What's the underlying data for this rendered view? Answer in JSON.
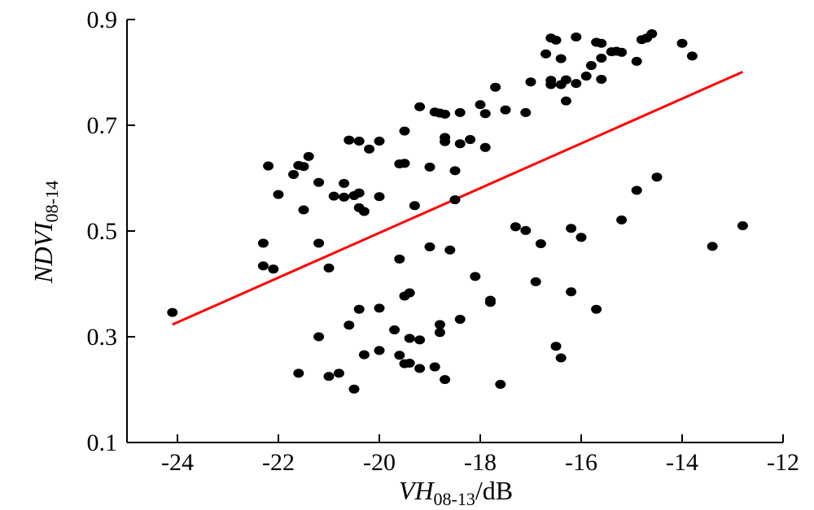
{
  "chart_data": {
    "type": "scatter",
    "title": "",
    "xlabel": {
      "main": "VH",
      "sub": "08-13",
      "suffix": "/dB"
    },
    "ylabel": {
      "main": "NDVI",
      "sub": "08-14"
    },
    "xlim": [
      -25,
      -12
    ],
    "ylim": [
      0.1,
      0.9
    ],
    "x_ticks": [
      "-24",
      "-22",
      "-20",
      "-18",
      "-16",
      "-14",
      "-12"
    ],
    "y_ticks": [
      "0.1",
      "0.3",
      "0.5",
      "0.7",
      "0.9"
    ],
    "grid": false,
    "series": [
      {
        "type": "scatter",
        "color": "#000000",
        "points": [
          [
            -24.1,
            0.346
          ],
          [
            -22.3,
            0.477
          ],
          [
            -22.3,
            0.434
          ],
          [
            -22.1,
            0.428
          ],
          [
            -22.2,
            0.623
          ],
          [
            -22.0,
            0.569
          ],
          [
            -21.7,
            0.607
          ],
          [
            -21.6,
            0.624
          ],
          [
            -21.5,
            0.622
          ],
          [
            -21.4,
            0.641
          ],
          [
            -21.5,
            0.54
          ],
          [
            -21.2,
            0.592
          ],
          [
            -21.2,
            0.477
          ],
          [
            -21.0,
            0.43
          ],
          [
            -20.9,
            0.566
          ],
          [
            -20.7,
            0.564
          ],
          [
            -20.7,
            0.59
          ],
          [
            -20.5,
            0.567
          ],
          [
            -20.6,
            0.672
          ],
          [
            -20.4,
            0.67
          ],
          [
            -20.4,
            0.572
          ],
          [
            -20.4,
            0.544
          ],
          [
            -20.3,
            0.537
          ],
          [
            -20.2,
            0.655
          ],
          [
            -20.0,
            0.67
          ],
          [
            -20.0,
            0.565
          ],
          [
            -19.6,
            0.627
          ],
          [
            -19.5,
            0.628
          ],
          [
            -19.5,
            0.689
          ],
          [
            -19.3,
            0.548
          ],
          [
            -19.2,
            0.735
          ],
          [
            -19.0,
            0.621
          ],
          [
            -18.9,
            0.725
          ],
          [
            -18.8,
            0.723
          ],
          [
            -18.7,
            0.721
          ],
          [
            -18.7,
            0.677
          ],
          [
            -18.7,
            0.669
          ],
          [
            -18.5,
            0.614
          ],
          [
            -18.5,
            0.559
          ],
          [
            -18.4,
            0.665
          ],
          [
            -18.4,
            0.724
          ],
          [
            -18.2,
            0.673
          ],
          [
            -18.0,
            0.739
          ],
          [
            -17.9,
            0.722
          ],
          [
            -17.9,
            0.658
          ],
          [
            -17.7,
            0.772
          ],
          [
            -17.5,
            0.729
          ],
          [
            -17.1,
            0.724
          ],
          [
            -17.0,
            0.782
          ],
          [
            -16.7,
            0.835
          ],
          [
            -16.6,
            0.865
          ],
          [
            -16.5,
            0.861
          ],
          [
            -16.6,
            0.785
          ],
          [
            -16.6,
            0.777
          ],
          [
            -16.4,
            0.826
          ],
          [
            -16.4,
            0.777
          ],
          [
            -16.3,
            0.786
          ],
          [
            -16.3,
            0.746
          ],
          [
            -16.1,
            0.867
          ],
          [
            -16.1,
            0.779
          ],
          [
            -15.9,
            0.793
          ],
          [
            -15.8,
            0.813
          ],
          [
            -15.7,
            0.857
          ],
          [
            -15.6,
            0.855
          ],
          [
            -15.6,
            0.827
          ],
          [
            -15.6,
            0.787
          ],
          [
            -15.4,
            0.839
          ],
          [
            -15.3,
            0.84
          ],
          [
            -15.2,
            0.838
          ],
          [
            -14.9,
            0.821
          ],
          [
            -14.8,
            0.862
          ],
          [
            -14.7,
            0.865
          ],
          [
            -14.6,
            0.873
          ],
          [
            -14.0,
            0.855
          ],
          [
            -13.8,
            0.831
          ],
          [
            -21.6,
            0.231
          ],
          [
            -21.2,
            0.3
          ],
          [
            -21.0,
            0.225
          ],
          [
            -20.8,
            0.231
          ],
          [
            -20.6,
            0.322
          ],
          [
            -20.5,
            0.201
          ],
          [
            -20.4,
            0.352
          ],
          [
            -20.3,
            0.266
          ],
          [
            -20.0,
            0.274
          ],
          [
            -20.0,
            0.354
          ],
          [
            -19.7,
            0.313
          ],
          [
            -19.6,
            0.265
          ],
          [
            -19.6,
            0.447
          ],
          [
            -19.5,
            0.377
          ],
          [
            -19.4,
            0.383
          ],
          [
            -19.5,
            0.249
          ],
          [
            -19.4,
            0.25
          ],
          [
            -19.4,
            0.297
          ],
          [
            -19.2,
            0.24
          ],
          [
            -19.2,
            0.294
          ],
          [
            -19.0,
            0.47
          ],
          [
            -18.9,
            0.243
          ],
          [
            -18.8,
            0.323
          ],
          [
            -18.8,
            0.308
          ],
          [
            -18.7,
            0.219
          ],
          [
            -18.6,
            0.464
          ],
          [
            -18.4,
            0.333
          ],
          [
            -18.1,
            0.414
          ],
          [
            -17.8,
            0.365
          ],
          [
            -17.8,
            0.369
          ],
          [
            -17.6,
            0.21
          ],
          [
            -17.3,
            0.508
          ],
          [
            -17.1,
            0.501
          ],
          [
            -16.9,
            0.404
          ],
          [
            -16.8,
            0.476
          ],
          [
            -16.5,
            0.282
          ],
          [
            -16.4,
            0.26
          ],
          [
            -16.2,
            0.385
          ],
          [
            -16.2,
            0.505
          ],
          [
            -16.0,
            0.488
          ],
          [
            -15.7,
            0.352
          ],
          [
            -15.2,
            0.521
          ],
          [
            -14.9,
            0.577
          ],
          [
            -14.5,
            0.602
          ],
          [
            -13.4,
            0.471
          ],
          [
            -12.8,
            0.51
          ]
        ]
      },
      {
        "type": "line",
        "color": "#ff0000",
        "x": [
          -24.1,
          -12.8
        ],
        "y": [
          0.323,
          0.801
        ]
      }
    ]
  }
}
